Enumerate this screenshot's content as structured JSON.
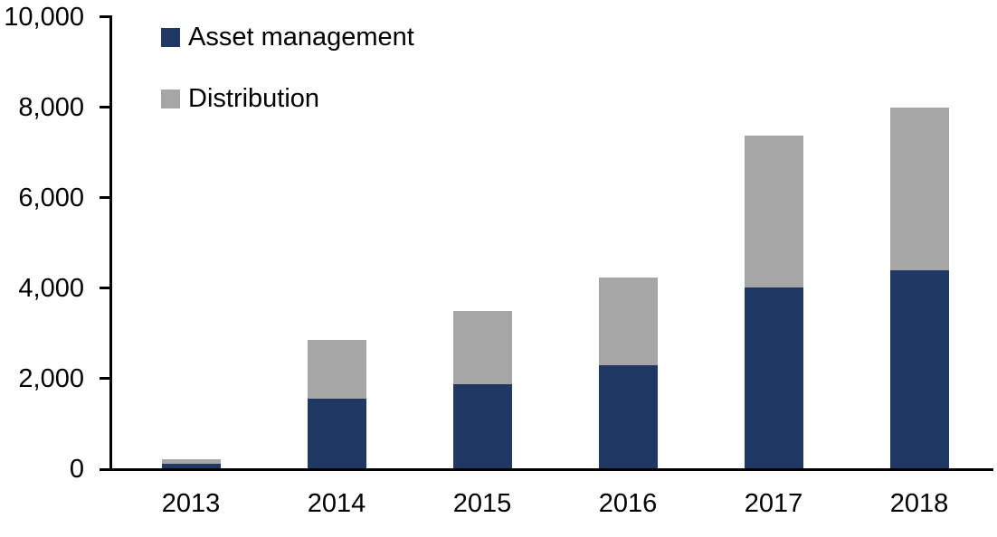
{
  "chart_data": {
    "type": "bar",
    "stacked": true,
    "title": "",
    "xlabel": "",
    "ylabel": "",
    "categories": [
      "2013",
      "2014",
      "2015",
      "2016",
      "2017",
      "2018"
    ],
    "series": [
      {
        "name": "Asset management",
        "color": "#1F3864",
        "values": [
          100,
          1540,
          1860,
          2280,
          4000,
          4380
        ]
      },
      {
        "name": "Distribution",
        "color": "#A6A6A6",
        "values": [
          100,
          1300,
          1620,
          1940,
          3360,
          3600
        ]
      }
    ],
    "totals": [
      200,
      2840,
      3480,
      4220,
      7360,
      7980
    ],
    "ylim": [
      0,
      10000
    ],
    "ytick_interval": 2000,
    "ytick_labels": [
      "0",
      "2,000",
      "4,000",
      "6,000",
      "8,000",
      "10,000"
    ],
    "grid": false,
    "legend_position": "top-left"
  },
  "colors": {
    "axis": "#000000",
    "text": "#000000",
    "background": "#FFFFFF",
    "asset_management": "#1F3864",
    "distribution": "#A6A6A6"
  }
}
